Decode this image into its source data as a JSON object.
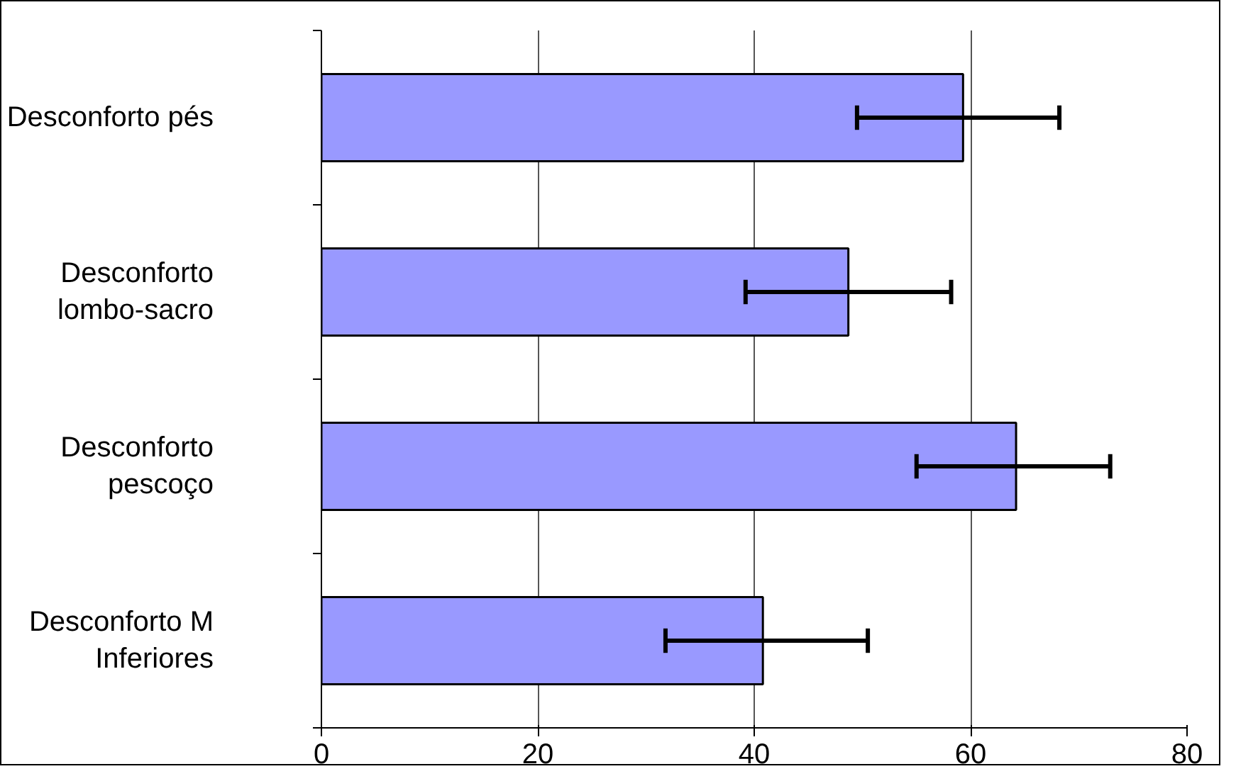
{
  "chart_data": {
    "type": "bar",
    "orientation": "horizontal",
    "categories": [
      "Desconforto pés",
      "Desconforto lombo-sacro",
      "Desconforto pescoço",
      "Desconforto M Inferiores"
    ],
    "values": [
      59.3,
      48.7,
      64.2,
      40.8
    ],
    "errors": [
      [
        49.5,
        68.2
      ],
      [
        39.2,
        58.2
      ],
      [
        55.0,
        72.9
      ],
      [
        31.8,
        50.5
      ]
    ],
    "color": "#9999ff",
    "xlim": [
      0,
      80
    ],
    "xticks": [
      0,
      20,
      40,
      60,
      80
    ],
    "grid": "x"
  }
}
